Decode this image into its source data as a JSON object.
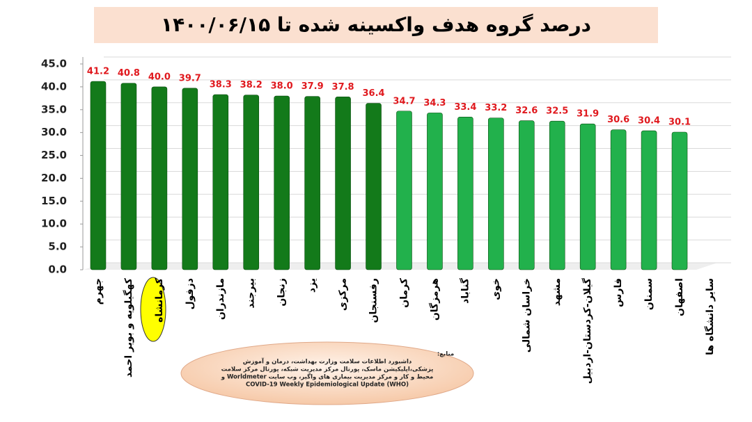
{
  "chart_data": {
    "type": "bar",
    "title": "درصد گروه هدف واکسینه شده تا ۱۴۰۰/۰۶/۱۵",
    "categories": [
      "جهرم",
      "کهگیلویه و بویر احمد",
      "کرمانشاه",
      "دزفول",
      "مازندران",
      "بیرجند",
      "زنجان",
      "یزد",
      "مرکزی",
      "رفسنجان",
      "کرمان",
      "هرمزگان",
      "گناباد",
      "خوی",
      "خراسان شمالی",
      "مشهد",
      "گیلان-کردستان-اردبیل",
      "فارس",
      "سمنان",
      "اصفهان",
      "سایر دانشگاه ها"
    ],
    "values": [
      41.2,
      40.8,
      40.0,
      39.7,
      38.3,
      38.2,
      38.0,
      37.9,
      37.8,
      36.4,
      34.7,
      34.3,
      33.4,
      33.2,
      32.6,
      32.5,
      31.9,
      30.6,
      30.4,
      30.1,
      null
    ],
    "value_labels": [
      "41.2",
      "40.8",
      "40.0",
      "39.7",
      "38.3",
      "38.2",
      "38.0",
      "37.9",
      "37.8",
      "36.4",
      "34.7",
      "34.3",
      "33.4",
      "33.2",
      "32.6",
      "32.5",
      "31.9",
      "30.6",
      "30.4",
      "30.1",
      null
    ],
    "colors": [
      "#137a1a",
      "#137a1a",
      "#137a1a",
      "#137a1a",
      "#137a1a",
      "#137a1a",
      "#137a1a",
      "#137a1a",
      "#137a1a",
      "#137a1a",
      "#22b14c",
      "#22b14c",
      "#22b14c",
      "#22b14c",
      "#22b14c",
      "#22b14c",
      "#22b14c",
      "#22b14c",
      "#22b14c",
      "#22b14c",
      "#22b14c"
    ],
    "ylim": [
      0,
      45
    ],
    "yticks": [
      {
        "value": 0,
        "label": "0.0"
      },
      {
        "value": 5,
        "label": "5.0"
      },
      {
        "value": 10,
        "label": "10.0"
      },
      {
        "value": 15,
        "label": "15.0"
      },
      {
        "value": 20,
        "label": "20.0"
      },
      {
        "value": 25,
        "label": "25.0"
      },
      {
        "value": 30,
        "label": "30.0"
      },
      {
        "value": 35,
        "label": "35.0"
      },
      {
        "value": 40,
        "label": "40.0"
      },
      {
        "value": 45,
        "label": "45.0"
      }
    ],
    "grid": true,
    "source": [
      "منابع:",
      "داشبورد اطلاعات سلامت وزارت بهداشت، درمان و آموزش",
      "پزشکی،اپلیکیشن ماسک، پورتال مرکز مدیریت شبکه، پورتال مرکز سلامت",
      "محیط و کار و مرکز مدیریت بیماری های واگیر، وب سایت Worldmeter و",
      "COVID-19 Weekly Epidemiological Update (WHO)"
    ]
  }
}
